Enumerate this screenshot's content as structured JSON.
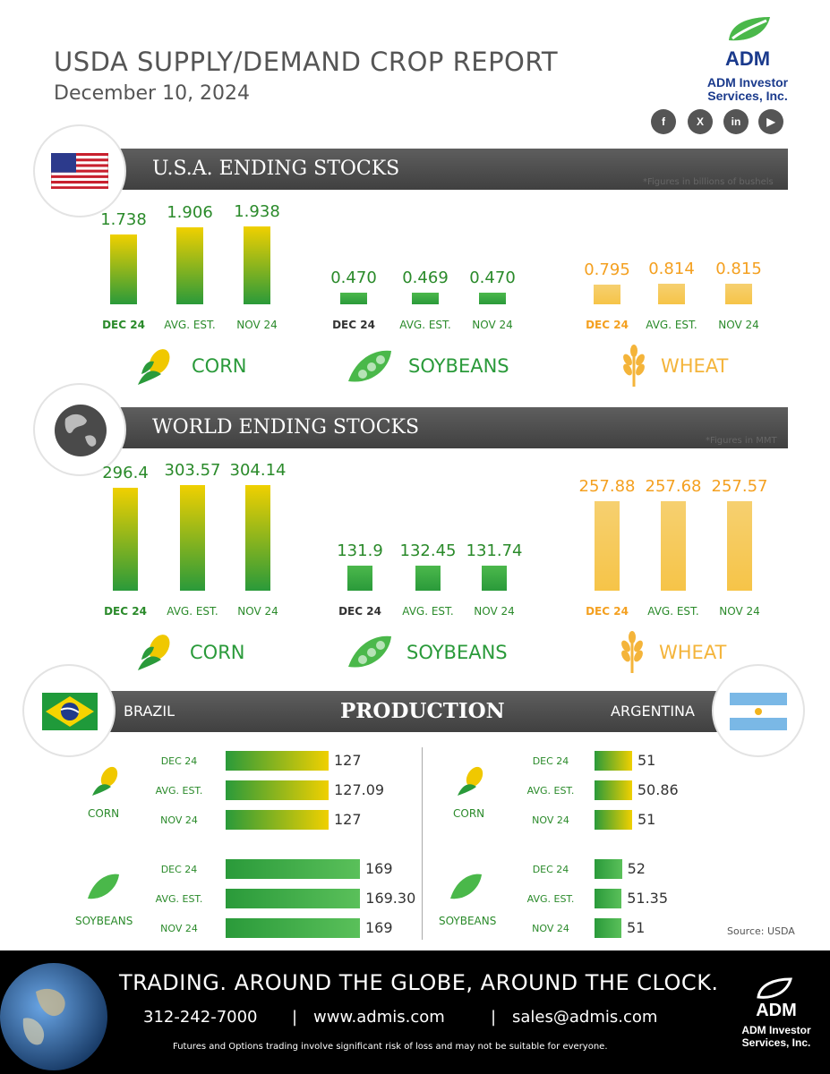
{
  "header": {
    "title": "USDA SUPPLY/DEMAND CROP REPORT",
    "date": "December 10, 2024",
    "logo_brand": "ADM",
    "logo_line1": "ADM Investor",
    "logo_line2": "Services, Inc.",
    "social": [
      "f",
      "X",
      "in",
      "▶"
    ]
  },
  "colors": {
    "green": "#2a9a3a",
    "yellow": "#f0c800",
    "wheat": "#f4b43a",
    "dark_band": "#4a4a4a"
  },
  "us_section": {
    "title": "U.S.A. ENDING STOCKS",
    "note": "*Figures in billions of bushels"
  },
  "world_section": {
    "title": "WORLD ENDING STOCKS",
    "note": "*Figures in MMT"
  },
  "production_section": {
    "title": "PRODUCTION",
    "left_country": "BRAZIL",
    "right_country": "ARGENTINA"
  },
  "crops": {
    "corn": "CORN",
    "soybeans": "SOYBEANS",
    "wheat": "WHEAT"
  },
  "chart_data": [
    {
      "type": "bar",
      "title": "U.S.A. ENDING STOCKS",
      "categories": [
        "DEC 24",
        "AVG. EST.",
        "NOV 24"
      ],
      "series": [
        {
          "name": "CORN",
          "values": [
            1.738,
            1.906,
            1.938
          ],
          "labels": [
            "1.738",
            "1.906",
            "1.938"
          ]
        },
        {
          "name": "SOYBEANS",
          "values": [
            0.47,
            0.469,
            0.47
          ],
          "labels": [
            "0.470",
            "0.469",
            "0.470"
          ]
        },
        {
          "name": "WHEAT",
          "values": [
            0.795,
            0.814,
            0.815
          ],
          "labels": [
            "0.795",
            "0.814",
            "0.815"
          ]
        }
      ]
    },
    {
      "type": "bar",
      "title": "WORLD ENDING STOCKS",
      "categories": [
        "DEC 24",
        "AVG. EST.",
        "NOV 24"
      ],
      "series": [
        {
          "name": "CORN",
          "values": [
            296.4,
            303.57,
            304.14
          ],
          "labels": [
            "296.4",
            "303.57",
            "304.14"
          ]
        },
        {
          "name": "SOYBEANS",
          "values": [
            131.9,
            132.45,
            131.74
          ],
          "labels": [
            "131.9",
            "132.45",
            "131.74"
          ]
        },
        {
          "name": "WHEAT",
          "values": [
            257.88,
            257.68,
            257.57
          ],
          "labels": [
            "257.88",
            "257.68",
            "257.57"
          ]
        }
      ]
    },
    {
      "type": "bar",
      "title": "PRODUCTION",
      "categories": [
        "DEC 24",
        "AVG. EST.",
        "NOV 24"
      ],
      "series": [
        {
          "name": "BRAZIL CORN",
          "values": [
            127,
            127.09,
            127
          ],
          "labels": [
            "127",
            "127.09",
            "127"
          ]
        },
        {
          "name": "BRAZIL SOYBEANS",
          "values": [
            169,
            169.3,
            169
          ],
          "labels": [
            "169",
            "169.30",
            "169"
          ]
        },
        {
          "name": "ARGENTINA CORN",
          "values": [
            51,
            50.86,
            51
          ],
          "labels": [
            "51",
            "50.86",
            "51"
          ]
        },
        {
          "name": "ARGENTINA SOYBEANS",
          "values": [
            52,
            51.35,
            51
          ],
          "labels": [
            "52",
            "51.35",
            "51"
          ]
        }
      ]
    }
  ],
  "source": "Source: USDA",
  "footer": {
    "tagline": "TRADING. AROUND THE GLOBE, AROUND THE CLOCK.",
    "phone": "312-242-7000",
    "web": "www.admis.com",
    "email": "sales@admis.com",
    "sep": "|",
    "disclaimer": "Futures and Options trading involve significant risk of loss and may not be suitable for everyone.",
    "brand": "ADM",
    "line1": "ADM Investor",
    "line2": "Services, Inc."
  }
}
